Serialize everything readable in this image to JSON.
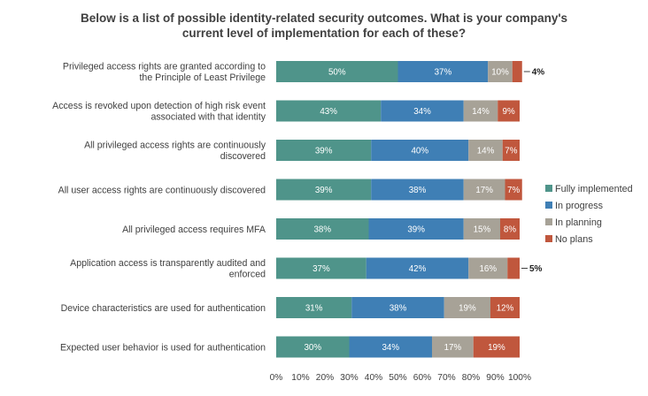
{
  "chart_data": {
    "type": "bar",
    "orientation": "horizontal",
    "stacked": true,
    "title": "Below is a list of possible identity-related security outcomes. What is your company's current level of implementation for each of these?",
    "title_lines": [
      "Below is a list of possible identity-related security outcomes. What is your company's",
      "current level of implementation for each of these?"
    ],
    "categories": [
      {
        "lines": [
          "Privileged access rights are granted according to",
          "the Principle of Least Privilege"
        ]
      },
      {
        "lines": [
          "Access is revoked upon detection of high risk event",
          "associated with that identity"
        ]
      },
      {
        "lines": [
          "All privileged access rights are continuously",
          "discovered"
        ]
      },
      {
        "lines": [
          "All user access rights are continuously discovered"
        ]
      },
      {
        "lines": [
          "All privileged access requires MFA"
        ]
      },
      {
        "lines": [
          "Application access is transparently audited and",
          "enforced"
        ]
      },
      {
        "lines": [
          "Device characteristics are used for authentication"
        ]
      },
      {
        "lines": [
          "Expected user behavior is used for authentication"
        ]
      }
    ],
    "series": [
      {
        "name": "Fully implemented",
        "color": "#4f948a",
        "values": [
          50,
          43,
          39,
          39,
          38,
          37,
          31,
          30
        ]
      },
      {
        "name": "In progress",
        "color": "#3f7fb5",
        "values": [
          37,
          34,
          40,
          38,
          39,
          42,
          38,
          34
        ]
      },
      {
        "name": "In planning",
        "color": "#a7a297",
        "values": [
          10,
          14,
          14,
          17,
          15,
          16,
          19,
          17
        ]
      },
      {
        "name": "No plans",
        "color": "#c0573d",
        "values": [
          4,
          9,
          7,
          7,
          8,
          5,
          12,
          19
        ]
      }
    ],
    "value_labels": [
      [
        "50%",
        "37%",
        "10%",
        "4%"
      ],
      [
        "43%",
        "34%",
        "14%",
        "9%"
      ],
      [
        "39%",
        "40%",
        "14%",
        "7%"
      ],
      [
        "39%",
        "38%",
        "17%",
        "7%"
      ],
      [
        "38%",
        "39%",
        "15%",
        "8%"
      ],
      [
        "37%",
        "42%",
        "16%",
        "5%"
      ],
      [
        "31%",
        "38%",
        "19%",
        "12%"
      ],
      [
        "30%",
        "34%",
        "17%",
        "19%"
      ]
    ],
    "callout_rows": [
      0,
      5
    ],
    "xlim": [
      0,
      100
    ],
    "x_ticks": [
      "0%",
      "10%",
      "20%",
      "30%",
      "40%",
      "50%",
      "60%",
      "70%",
      "80%",
      "90%",
      "100%"
    ],
    "legend_position": "right",
    "grid": false
  }
}
